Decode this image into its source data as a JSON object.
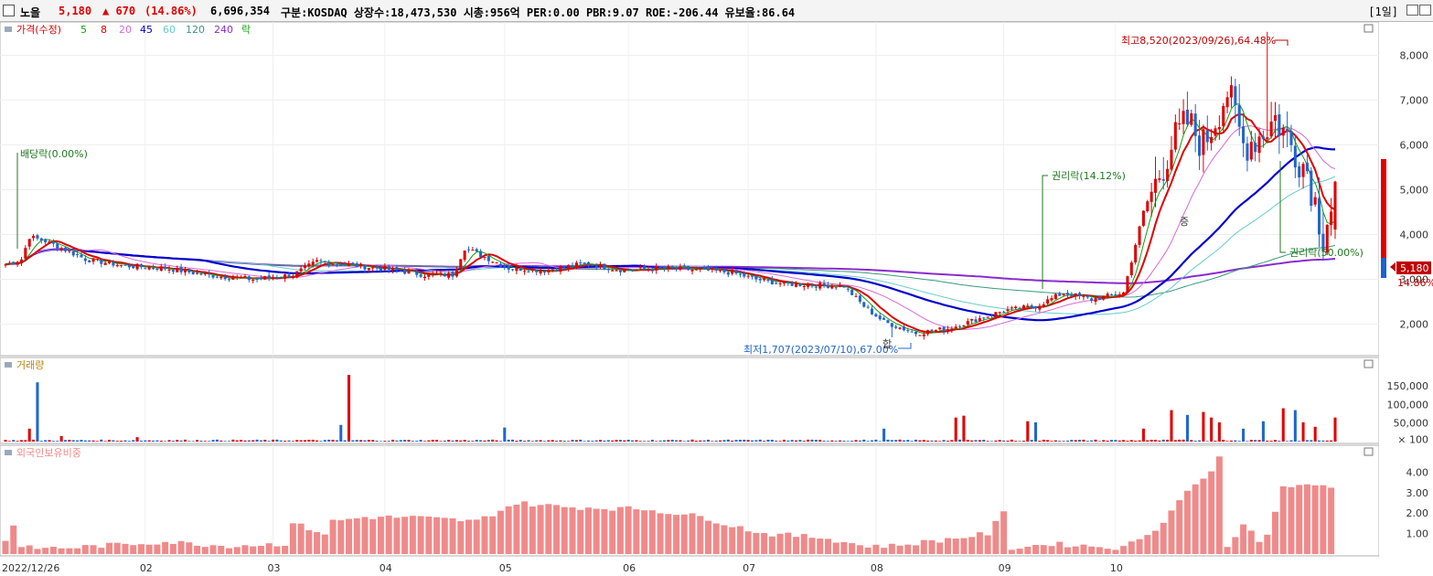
{
  "header": {
    "name": "노을",
    "price": "5,180",
    "change": "▲ 670",
    "change_pct": "(14.86%)",
    "volume": "6,696,354",
    "info": "구분:KOSDAQ 상장수:18,473,530 시총:956억 PER:0.00 PBR:9.07 ROE:-206.44 유보율:86.64",
    "period": "[1일]"
  },
  "legends": {
    "price": [
      "가격(수정)",
      "5",
      "8",
      "20",
      "45",
      "60",
      "120",
      "240",
      "락"
    ],
    "volume": "거래량",
    "foreign": "외국인보유비중"
  },
  "annotations": {
    "high": "최고8,520(2023/09/26),64.48%",
    "low": "최저1,707(2023/07/10),67.00%",
    "dividend": "배당락(0.00%)",
    "rights1": "권리락(14.12%)",
    "rights2": "권리락(50.00%)",
    "half1": "합",
    "half2": "증"
  },
  "price_tag": {
    "price": "5,180",
    "pct": "14.86%"
  },
  "x_labels": [
    "2022/12/26",
    "02",
    "03",
    "04",
    "05",
    "06",
    "07",
    "08",
    "09",
    "10"
  ],
  "colors": {
    "up": "#e00000",
    "down": "#2266cc",
    "ma5": "#12a012",
    "ma8": "#e00000",
    "ma20": "#d86ad8",
    "ma45": "#0000cc",
    "ma60": "#66cccc",
    "ma120": "#3a9a7a",
    "ma240": "#8a2ad0",
    "foreign": "#f08a8a"
  },
  "chart_data": [
    {
      "type": "candlestick",
      "title": "가격(수정)",
      "y_ticks": [
        "2,000",
        "3,000",
        "4,000",
        "5,000",
        "6,000",
        "7,000",
        "8,000"
      ],
      "ylim": [
        1400,
        8700
      ],
      "anchors_close": [
        [
          0,
          3330
        ],
        [
          4,
          3450
        ],
        [
          6,
          3950
        ],
        [
          10,
          3850
        ],
        [
          14,
          3700
        ],
        [
          20,
          3450
        ],
        [
          30,
          3300
        ],
        [
          40,
          3250
        ],
        [
          50,
          3100
        ],
        [
          62,
          3000
        ],
        [
          72,
          3100
        ],
        [
          78,
          3400
        ],
        [
          88,
          3300
        ],
        [
          98,
          3200
        ],
        [
          105,
          3100
        ],
        [
          112,
          3100
        ],
        [
          115,
          3700
        ],
        [
          120,
          3500
        ],
        [
          126,
          3250
        ],
        [
          135,
          3200
        ],
        [
          145,
          3350
        ],
        [
          155,
          3200
        ],
        [
          165,
          3250
        ],
        [
          175,
          3200
        ],
        [
          182,
          3150
        ],
        [
          188,
          3000
        ],
        [
          195,
          2900
        ],
        [
          210,
          2850
        ],
        [
          215,
          2400
        ],
        [
          220,
          2050
        ],
        [
          228,
          1800
        ],
        [
          236,
          1900
        ],
        [
          243,
          2100
        ],
        [
          250,
          2300
        ],
        [
          258,
          2400
        ],
        [
          265,
          2700
        ],
        [
          272,
          2550
        ],
        [
          280,
          2700
        ],
        [
          285,
          4500
        ],
        [
          292,
          6000
        ],
        [
          296,
          6500
        ],
        [
          300,
          6000
        ],
        [
          306,
          7200
        ],
        [
          310,
          6000
        ],
        [
          314,
          6200
        ],
        [
          318,
          6600
        ],
        [
          322,
          6000
        ],
        [
          326,
          5450
        ],
        [
          330,
          4000
        ],
        [
          333,
          5180
        ]
      ],
      "high": {
        "value": 8520,
        "date": "2023/09/26"
      },
      "low": {
        "value": 1707,
        "date": "2023/07/10"
      },
      "last": {
        "close": 5180,
        "change": 670,
        "change_pct": 14.86
      },
      "moving_averages": [
        "5",
        "8",
        "20",
        "45",
        "60",
        "120",
        "240"
      ]
    },
    {
      "type": "bar",
      "title": "거래량",
      "y_ticks": [
        "150,000",
        "100,000",
        "50,000",
        "× 100"
      ],
      "ylim": [
        0,
        190000
      ],
      "spikes": [
        [
          6,
          35000
        ],
        [
          8,
          160000
        ],
        [
          14,
          15000
        ],
        [
          33,
          12000
        ],
        [
          84,
          45000
        ],
        [
          86,
          180000
        ],
        [
          125,
          38000
        ],
        [
          220,
          35000
        ],
        [
          238,
          65000
        ],
        [
          240,
          70000
        ],
        [
          256,
          55000
        ],
        [
          258,
          52000
        ],
        [
          285,
          35000
        ],
        [
          292,
          85000
        ],
        [
          296,
          72000
        ],
        [
          300,
          80000
        ],
        [
          302,
          65000
        ],
        [
          304,
          52000
        ],
        [
          310,
          35000
        ],
        [
          315,
          55000
        ],
        [
          320,
          90000
        ],
        [
          323,
          85000
        ],
        [
          325,
          52000
        ],
        [
          328,
          40000
        ],
        [
          333,
          65000
        ]
      ]
    },
    {
      "type": "bar",
      "title": "외국인보유비중",
      "y_ticks": [
        "4.00",
        "3.00",
        "2.00",
        "1.00"
      ],
      "ylim": [
        0,
        5.0
      ],
      "anchors": [
        [
          0,
          0.6
        ],
        [
          2,
          1.5
        ],
        [
          4,
          0.3
        ],
        [
          15,
          0.3
        ],
        [
          40,
          0.6
        ],
        [
          55,
          0.4
        ],
        [
          70,
          0.5
        ],
        [
          72,
          1.5
        ],
        [
          80,
          1.0
        ],
        [
          82,
          1.6
        ],
        [
          90,
          1.8
        ],
        [
          102,
          1.8
        ],
        [
          118,
          1.6
        ],
        [
          128,
          2.5
        ],
        [
          140,
          2.3
        ],
        [
          160,
          2.2
        ],
        [
          175,
          1.8
        ],
        [
          180,
          1.5
        ],
        [
          190,
          1.0
        ],
        [
          205,
          0.8
        ],
        [
          215,
          0.4
        ],
        [
          222,
          0.4
        ],
        [
          235,
          0.7
        ],
        [
          246,
          1.0
        ],
        [
          250,
          2.0
        ],
        [
          252,
          0.3
        ],
        [
          262,
          0.5
        ],
        [
          280,
          0.3
        ],
        [
          290,
          1.5
        ],
        [
          295,
          3.0
        ],
        [
          300,
          3.6
        ],
        [
          304,
          4.7
        ],
        [
          306,
          0.4
        ],
        [
          310,
          1.5
        ],
        [
          315,
          0.3
        ],
        [
          320,
          3.3
        ],
        [
          323,
          3.3
        ]
      ]
    }
  ]
}
